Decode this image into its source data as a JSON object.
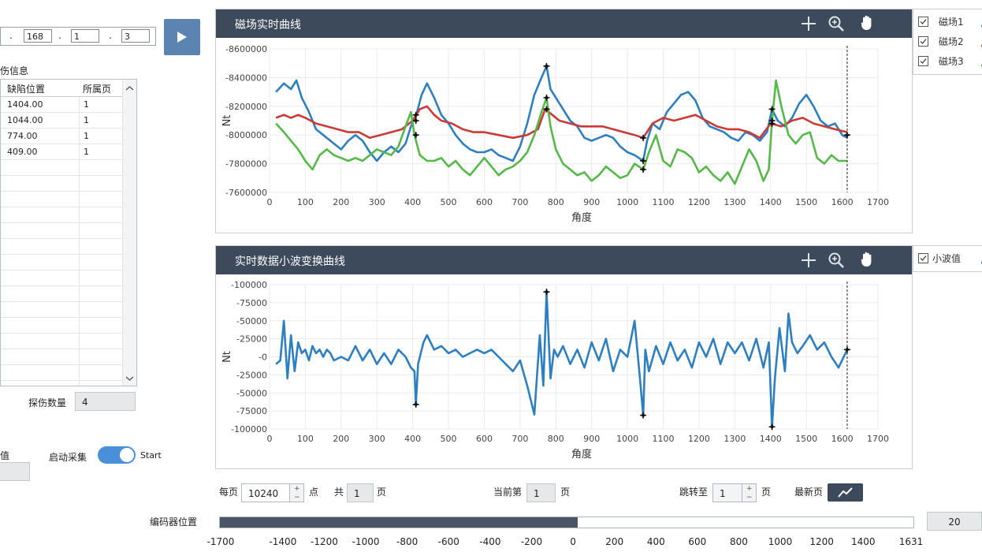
{
  "connection": {
    "ip_dot1": ".",
    "ip_part2": "168",
    "ip_dot2": ".",
    "ip_part3": "1",
    "ip_dot3": ".",
    "ip_part4": "3"
  },
  "defect_panel": {
    "title": "伤信息",
    "columns": [
      "缺陷位置",
      "所属页"
    ],
    "rows": [
      {
        "position": "1404.00",
        "page": "1"
      },
      {
        "position": "1044.00",
        "page": "1"
      },
      {
        "position": "774.00",
        "page": "1"
      },
      {
        "position": "409.00",
        "page": "1"
      }
    ],
    "count_label": "探伤数量",
    "count_value": "4"
  },
  "left_bottom": {
    "value_label": "值",
    "start_label": "启动采集",
    "toggle_text": "Start",
    "toggle_on": true
  },
  "magnetic_chart": {
    "title": "磁场实时曲线",
    "legend": [
      {
        "name": "磁场1",
        "checked": true,
        "color": "#2e7fc0"
      },
      {
        "name": "磁场2",
        "checked": true,
        "color": "#cc3a35"
      },
      {
        "name": "磁场3",
        "checked": true,
        "color": "#55b848"
      }
    ]
  },
  "wavelet_chart": {
    "title": "实时数据小波变换曲线",
    "legend": [
      {
        "name": "小波值",
        "checked": true,
        "color": "#2e7fc0"
      }
    ]
  },
  "chart_data": [
    {
      "type": "line",
      "title": "磁场实时曲线",
      "xlabel": "角度",
      "ylabel": "Nt",
      "xlim": [
        0,
        1700
      ],
      "ylim": [
        7600000,
        8600000
      ],
      "x_ticks": [
        "0",
        "100",
        "200",
        "300",
        "400",
        "500",
        "600",
        "700",
        "800",
        "900",
        "1000",
        "1100",
        "1200",
        "1300",
        "1400",
        "1500",
        "1600",
        "1700"
      ],
      "y_ticks": [
        "-8600000",
        "-8400000",
        "-8200000",
        "-8000000",
        "-7800000",
        "-7600000"
      ],
      "y_tick_values": [
        8600000,
        8400000,
        8200000,
        8000000,
        7800000,
        7600000
      ],
      "grid": true,
      "legend_position": "right",
      "cursor_x": 1614,
      "markers_x": [
        409,
        774,
        1044,
        1404
      ],
      "series": [
        {
          "name": "磁场1",
          "color": "#2e7fc0",
          "x": [
            18,
            40,
            60,
            75,
            90,
            110,
            130,
            150,
            170,
            200,
            220,
            240,
            260,
            280,
            300,
            320,
            340,
            360,
            380,
            395,
            410,
            425,
            440,
            460,
            480,
            500,
            520,
            540,
            560,
            580,
            600,
            620,
            640,
            660,
            680,
            700,
            720,
            740,
            760,
            774,
            785,
            800,
            820,
            840,
            860,
            880,
            900,
            920,
            940,
            960,
            980,
            1000,
            1020,
            1044,
            1055,
            1070,
            1090,
            1110,
            1130,
            1150,
            1170,
            1190,
            1210,
            1230,
            1250,
            1270,
            1290,
            1310,
            1330,
            1350,
            1370,
            1390,
            1404,
            1420,
            1440,
            1460,
            1480,
            1500,
            1520,
            1540,
            1560,
            1580,
            1600,
            1614
          ],
          "y": [
            8300000,
            8360000,
            8320000,
            8380000,
            8260000,
            8160000,
            8040000,
            8000000,
            7960000,
            7900000,
            7960000,
            8000000,
            7960000,
            7880000,
            7820000,
            7880000,
            7920000,
            7880000,
            7940000,
            8060000,
            8140000,
            8280000,
            8360000,
            8260000,
            8140000,
            8080000,
            8000000,
            7940000,
            7900000,
            7880000,
            7880000,
            7900000,
            7860000,
            7840000,
            7820000,
            7920000,
            8080000,
            8280000,
            8400000,
            8480000,
            8320000,
            8260000,
            8180000,
            8100000,
            8060000,
            7980000,
            7960000,
            7980000,
            8000000,
            7980000,
            7920000,
            7880000,
            7860000,
            7820000,
            7960000,
            8080000,
            8040000,
            8160000,
            8220000,
            8280000,
            8300000,
            8240000,
            8120000,
            8060000,
            8040000,
            8020000,
            7980000,
            7960000,
            8020000,
            8000000,
            7960000,
            8020000,
            8180000,
            8100000,
            8060000,
            8120000,
            8220000,
            8280000,
            8200000,
            8100000,
            8060000,
            8080000,
            8000000,
            7980000
          ]
        },
        {
          "name": "磁场2",
          "color": "#cc3a35",
          "x": [
            18,
            40,
            60,
            80,
            100,
            130,
            160,
            190,
            220,
            250,
            280,
            310,
            340,
            370,
            400,
            420,
            440,
            460,
            480,
            510,
            540,
            570,
            600,
            640,
            680,
            720,
            750,
            770,
            790,
            810,
            840,
            870,
            900,
            930,
            960,
            990,
            1020,
            1044,
            1070,
            1100,
            1130,
            1160,
            1190,
            1220,
            1250,
            1280,
            1310,
            1340,
            1370,
            1400,
            1430,
            1460,
            1490,
            1520,
            1550,
            1580,
            1614
          ],
          "y": [
            8120000,
            8140000,
            8120000,
            8140000,
            8120000,
            8080000,
            8060000,
            8040000,
            8020000,
            8020000,
            7980000,
            8000000,
            8020000,
            8040000,
            8100000,
            8180000,
            8200000,
            8140000,
            8100000,
            8080000,
            8040000,
            8020000,
            8020000,
            8000000,
            7980000,
            8000000,
            8040000,
            8180000,
            8140000,
            8100000,
            8080000,
            8060000,
            8060000,
            8060000,
            8040000,
            8020000,
            8000000,
            7980000,
            8080000,
            8120000,
            8100000,
            8120000,
            8140000,
            8100000,
            8060000,
            8040000,
            8040000,
            8020000,
            7980000,
            8080000,
            8060000,
            8100000,
            8120000,
            8080000,
            8060000,
            8040000,
            8020000
          ]
        },
        {
          "name": "磁场3",
          "color": "#55b848",
          "x": [
            18,
            40,
            60,
            80,
            100,
            120,
            140,
            160,
            180,
            200,
            220,
            240,
            260,
            280,
            300,
            320,
            340,
            360,
            380,
            395,
            405,
            420,
            440,
            460,
            480,
            500,
            520,
            540,
            560,
            580,
            600,
            620,
            640,
            660,
            680,
            700,
            720,
            740,
            760,
            774,
            785,
            800,
            820,
            840,
            860,
            880,
            900,
            920,
            940,
            960,
            980,
            1000,
            1020,
            1044,
            1060,
            1080,
            1100,
            1120,
            1140,
            1160,
            1180,
            1200,
            1220,
            1240,
            1260,
            1280,
            1300,
            1320,
            1340,
            1360,
            1380,
            1395,
            1404,
            1415,
            1430,
            1450,
            1470,
            1490,
            1510,
            1530,
            1550,
            1570,
            1590,
            1614
          ],
          "y": [
            8080000,
            8020000,
            7960000,
            7900000,
            7820000,
            7760000,
            7860000,
            7900000,
            7860000,
            7840000,
            7820000,
            7840000,
            7820000,
            7860000,
            7900000,
            7880000,
            7860000,
            7920000,
            8060000,
            8160000,
            8000000,
            7860000,
            7820000,
            7820000,
            7840000,
            7780000,
            7820000,
            7760000,
            7720000,
            7780000,
            7840000,
            7780000,
            7720000,
            7760000,
            7780000,
            7820000,
            7880000,
            8000000,
            8160000,
            8260000,
            8060000,
            7900000,
            7800000,
            7760000,
            7720000,
            7740000,
            7680000,
            7720000,
            7780000,
            7740000,
            7700000,
            7720000,
            7800000,
            7760000,
            7880000,
            8000000,
            7820000,
            7780000,
            7900000,
            7880000,
            7840000,
            7740000,
            7780000,
            7720000,
            7680000,
            7740000,
            7660000,
            7780000,
            7900000,
            7820000,
            7680000,
            7760000,
            8100000,
            8380000,
            8200000,
            8000000,
            7940000,
            8000000,
            8020000,
            7840000,
            7800000,
            7860000,
            7820000,
            7820000
          ]
        }
      ]
    },
    {
      "type": "line",
      "title": "实时数据小波变换曲线",
      "xlabel": "角度",
      "ylabel": "Nt",
      "xlim": [
        0,
        1700
      ],
      "ylim": [
        -100000,
        100000
      ],
      "x_ticks": [
        "0",
        "100",
        "200",
        "300",
        "400",
        "500",
        "600",
        "700",
        "800",
        "900",
        "1000",
        "1100",
        "1200",
        "1300",
        "1400",
        "1500",
        "1600",
        "1700"
      ],
      "y_ticks": [
        "-100000",
        "-75000",
        "-50000",
        "-25000",
        "-0",
        "-25000",
        "-50000",
        "-75000",
        "-100000"
      ],
      "y_tick_values": [
        100000,
        75000,
        50000,
        25000,
        0,
        -25000,
        -50000,
        -75000,
        -100000
      ],
      "grid": true,
      "legend_position": "right",
      "cursor_x": 1614,
      "markers": [
        [
          409,
          -66000
        ],
        [
          774,
          90000
        ],
        [
          1044,
          -81000
        ],
        [
          1404,
          -97000
        ],
        [
          1614,
          10000
        ]
      ],
      "series": [
        {
          "name": "小波值",
          "color": "#2e7fc0",
          "x": [
            18,
            30,
            40,
            50,
            60,
            70,
            80,
            90,
            100,
            110,
            120,
            130,
            140,
            150,
            160,
            170,
            180,
            200,
            220,
            240,
            260,
            280,
            300,
            320,
            340,
            360,
            380,
            395,
            405,
            409,
            415,
            430,
            440,
            460,
            480,
            500,
            520,
            540,
            560,
            580,
            600,
            620,
            640,
            660,
            680,
            700,
            720,
            740,
            755,
            765,
            774,
            785,
            795,
            805,
            820,
            840,
            860,
            880,
            900,
            920,
            940,
            960,
            980,
            1000,
            1020,
            1035,
            1044,
            1050,
            1060,
            1080,
            1100,
            1120,
            1140,
            1160,
            1180,
            1200,
            1220,
            1240,
            1260,
            1280,
            1300,
            1320,
            1340,
            1360,
            1380,
            1395,
            1404,
            1412,
            1425,
            1440,
            1450,
            1460,
            1475,
            1490,
            1510,
            1530,
            1550,
            1570,
            1590,
            1614
          ],
          "y": [
            -10000,
            -5000,
            50000,
            -30000,
            30000,
            -20000,
            20000,
            5000,
            10000,
            -5000,
            15000,
            5000,
            10000,
            0,
            10000,
            5000,
            -5000,
            0,
            -5000,
            15000,
            -5000,
            10000,
            -10000,
            5000,
            -10000,
            10000,
            0,
            -15000,
            -20000,
            -66000,
            -10000,
            20000,
            30000,
            10000,
            15000,
            5000,
            10000,
            0,
            5000,
            10000,
            5000,
            10000,
            0,
            -10000,
            -20000,
            -5000,
            -40000,
            -80000,
            30000,
            -40000,
            90000,
            -30000,
            10000,
            0,
            15000,
            -10000,
            10000,
            -15000,
            20000,
            -5000,
            25000,
            -20000,
            10000,
            0,
            50000,
            -30000,
            -81000,
            10000,
            -20000,
            15000,
            -10000,
            20000,
            -5000,
            10000,
            -15000,
            20000,
            0,
            25000,
            -10000,
            20000,
            5000,
            20000,
            -5000,
            25000,
            -15000,
            20000,
            -97000,
            -30000,
            40000,
            -20000,
            60000,
            20000,
            5000,
            15000,
            30000,
            10000,
            20000,
            0,
            -15000,
            10000
          ]
        }
      ]
    }
  ],
  "pagination": {
    "per_page_label": "每页",
    "per_page_value": "10240",
    "per_page_unit": "点",
    "total_label": "共",
    "total_value": "1",
    "total_unit": "页",
    "current_label": "当前第",
    "current_value": "1",
    "current_unit": "页",
    "jump_label": "跳转至",
    "jump_value": "1",
    "jump_unit": "页",
    "latest_label": "最新页"
  },
  "encoder": {
    "label": "编码器位置",
    "value": "20",
    "range": [
      -1700,
      1631
    ],
    "current": 20,
    "ticks": [
      "-1700",
      "-1400",
      "-1200",
      "-1000",
      "-800",
      "-600",
      "-400",
      "-200",
      "0",
      "200",
      "400",
      "600",
      "800",
      "1000",
      "1200",
      "1400",
      "1631"
    ],
    "tick_values": [
      -1700,
      -1400,
      -1200,
      -1000,
      -800,
      -600,
      -400,
      -200,
      0,
      200,
      400,
      600,
      800,
      1000,
      1200,
      1400,
      1631
    ]
  },
  "icons": [
    "play-icon",
    "crosshair-icon",
    "zoom-icon",
    "hand-pan-icon",
    "trend-icon",
    "checkbox-icon"
  ]
}
